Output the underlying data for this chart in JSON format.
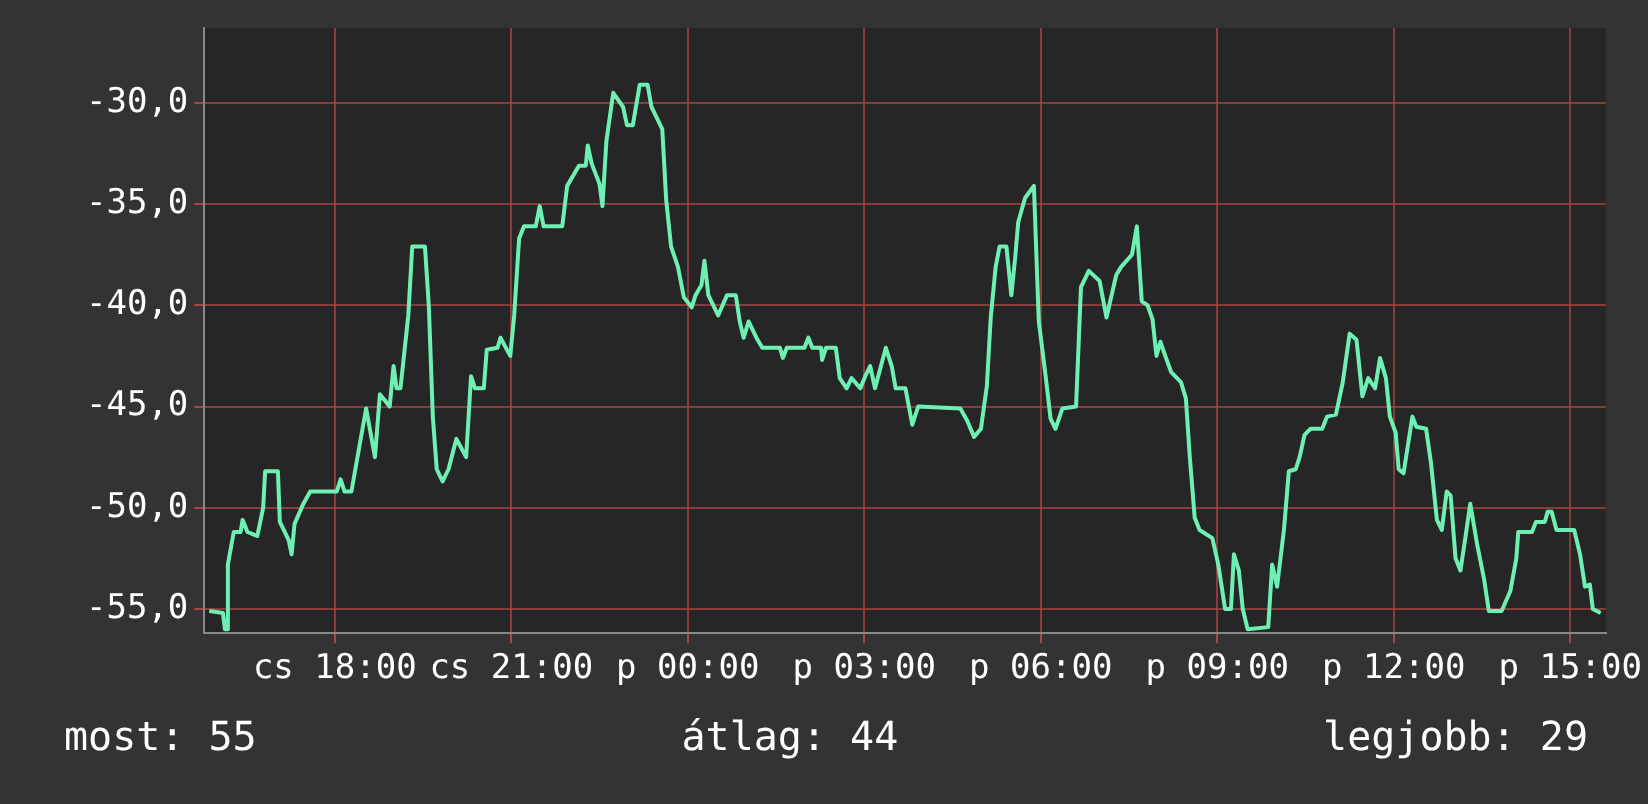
{
  "chart_data": {
    "type": "line",
    "line_style": "solid",
    "marker": "none",
    "grid": true,
    "legend": false,
    "xlim": [
      "--01-02T15:47",
      "--01-03T15:36"
    ],
    "xticks": [
      {
        "value": "--01-02T18:00",
        "label": "cs 18:00"
      },
      {
        "value": "--01-02T21:00",
        "label": "cs 21:00"
      },
      {
        "value": "--01-03T00:00",
        "label": "p 00:00"
      },
      {
        "value": "--01-03T03:00",
        "label": "p 03:00"
      },
      {
        "value": "--01-03T06:00",
        "label": "p 06:00"
      },
      {
        "value": "--01-03T09:00",
        "label": "p 09:00"
      },
      {
        "value": "--01-03T12:00",
        "label": "p 12:00"
      },
      {
        "value": "--01-03T15:00",
        "label": "p 15:00"
      }
    ],
    "ylim": [
      -56.2,
      -26.3
    ],
    "yticks": [
      {
        "value": -55,
        "label": "-55,0"
      },
      {
        "value": -50,
        "label": "-50,0"
      },
      {
        "value": -45,
        "label": "-45,0"
      },
      {
        "value": -40,
        "label": "-40,0"
      },
      {
        "value": -35,
        "label": "-35,0"
      },
      {
        "value": -30,
        "label": "-30,0"
      }
    ],
    "annotations": [
      "most: 55",
      "átlag: 44",
      "legjobb: 29"
    ],
    "series": [
      {
        "color": "#6ef0b4",
        "x": [
          "--01-02T15:52",
          "--01-02T16:06",
          "--01-02T16:08",
          "--01-02T16:11",
          "--01-02T16:11",
          "--01-02T16:17",
          "--01-02T16:24",
          "--01-02T16:26",
          "--01-02T16:31",
          "--01-02T16:41",
          "--01-02T16:47",
          "--01-02T16:49",
          "--01-02T17:02",
          "--01-02T17:04",
          "--01-02T17:13",
          "--01-02T17:16",
          "--01-02T17:19",
          "--01-02T17:28",
          "--01-02T17:35",
          "--01-02T18:02",
          "--01-02T18:06",
          "--01-02T18:10",
          "--01-02T18:17",
          "--01-02T18:25",
          "--01-02T18:32",
          "--01-02T18:41",
          "--01-02T18:46",
          "--01-02T18:56",
          "--01-02T19:00",
          "--01-02T19:03",
          "--01-02T19:07",
          "--01-02T19:15",
          "--01-02T19:19",
          "--01-02T19:32",
          "--01-02T19:36",
          "--01-02T19:40",
          "--01-02T19:44",
          "--01-02T19:50",
          "--01-02T19:56",
          "--01-02T20:04",
          "--01-02T20:14",
          "--01-02T20:19",
          "--01-02T20:23",
          "--01-02T20:32",
          "--01-02T20:35",
          "--01-02T20:46",
          "--01-02T20:49",
          "--01-02T20:59",
          "--01-02T21:03",
          "--01-02T21:08",
          "--01-02T21:13",
          "--01-02T21:25",
          "--01-02T21:29",
          "--01-02T21:33",
          "--01-02T21:52",
          "--01-02T21:57",
          "--01-02T22:09",
          "--01-02T22:16",
          "--01-02T22:18",
          "--01-02T22:22",
          "--01-02T22:30",
          "--01-02T22:33",
          "--01-02T22:37",
          "--01-02T22:44",
          "--01-02T22:54",
          "--01-02T22:58",
          "--01-02T23:04",
          "--01-02T23:11",
          "--01-02T23:19",
          "--01-02T23:23",
          "--01-02T23:34",
          "--01-02T23:38",
          "--01-02T23:43",
          "--01-02T23:50",
          "--01-02T23:56",
          "--01-03T00:04",
          "--01-03T00:08",
          "--01-03T00:14",
          "--01-03T00:17",
          "--01-03T00:21",
          "--01-03T00:31",
          "--01-03T00:40",
          "--01-03T00:49",
          "--01-03T00:53",
          "--01-03T00:57",
          "--01-03T01:02",
          "--01-03T01:10",
          "--01-03T01:16",
          "--01-03T01:34",
          "--01-03T01:37",
          "--01-03T01:41",
          "--01-03T01:59",
          "--01-03T02:03",
          "--01-03T02:07",
          "--01-03T02:16",
          "--01-03T02:17",
          "--01-03T02:21",
          "--01-03T02:31",
          "--01-03T02:35",
          "--01-03T02:42",
          "--01-03T02:47",
          "--01-03T02:56",
          "--01-03T03:01",
          "--01-03T03:06",
          "--01-03T03:11",
          "--01-03T03:22",
          "--01-03T03:28",
          "--01-03T03:32",
          "--01-03T03:42",
          "--01-03T03:49",
          "--01-03T03:55",
          "--01-03T04:38",
          "--01-03T04:45",
          "--01-03T04:52",
          "--01-03T04:59",
          "--01-03T05:05",
          "--01-03T05:09",
          "--01-03T05:14",
          "--01-03T05:18",
          "--01-03T05:25",
          "--01-03T05:30",
          "--01-03T05:34",
          "--01-03T05:37",
          "--01-03T05:44",
          "--01-03T05:53",
          "--01-03T05:58",
          "--01-03T06:05",
          "--01-03T06:10",
          "--01-03T06:15",
          "--01-03T06:22",
          "--01-03T06:36",
          "--01-03T06:41",
          "--01-03T06:49",
          "--01-03T07:00",
          "--01-03T07:07",
          "--01-03T07:17",
          "--01-03T07:22",
          "--01-03T07:33",
          "--01-03T07:38",
          "--01-03T07:43",
          "--01-03T07:49",
          "--01-03T07:54",
          "--01-03T07:58",
          "--01-03T08:02",
          "--01-03T08:07",
          "--01-03T08:13",
          "--01-03T08:23",
          "--01-03T08:28",
          "--01-03T08:32",
          "--01-03T08:37",
          "--01-03T08:42",
          "--01-03T08:55",
          "--01-03T09:01",
          "--01-03T09:08",
          "--01-03T09:14",
          "--01-03T09:17",
          "--01-03T09:22",
          "--01-03T09:26",
          "--01-03T09:31",
          "--01-03T09:52",
          "--01-03T09:56",
          "--01-03T10:01",
          "--01-03T10:08",
          "--01-03T10:13",
          "--01-03T10:20",
          "--01-03T10:24",
          "--01-03T10:29",
          "--01-03T10:35",
          "--01-03T10:47",
          "--01-03T10:52",
          "--01-03T11:01",
          "--01-03T11:08",
          "--01-03T11:15",
          "--01-03T11:22",
          "--01-03T11:28",
          "--01-03T11:34",
          "--01-03T11:41",
          "--01-03T11:46",
          "--01-03T11:52",
          "--01-03T11:56",
          "--01-03T12:02",
          "--01-03T12:05",
          "--01-03T12:10",
          "--01-03T12:19",
          "--01-03T12:23",
          "--01-03T12:33",
          "--01-03T12:38",
          "--01-03T12:44",
          "--01-03T12:49",
          "--01-03T12:54",
          "--01-03T12:58",
          "--01-03T13:03",
          "--01-03T13:08",
          "--01-03T13:13",
          "--01-03T13:18",
          "--01-03T13:25",
          "--01-03T13:32",
          "--01-03T13:37",
          "--01-03T13:50",
          "--01-03T13:59",
          "--01-03T14:05",
          "--01-03T14:07",
          "--01-03T14:21",
          "--01-03T14:25",
          "--01-03T14:34",
          "--01-03T14:37",
          "--01-03T14:41",
          "--01-03T14:46",
          "--01-03T15:04",
          "--01-03T15:10",
          "--01-03T15:15",
          "--01-03T15:20",
          "--01-03T15:23",
          "--01-03T15:31"
        ],
        "values": [
          -55.1,
          -55.2,
          -56.0,
          -56.0,
          -52.8,
          -51.2,
          -51.2,
          -50.6,
          -51.2,
          -51.4,
          -50.0,
          -48.2,
          -48.2,
          -50.7,
          -51.6,
          -52.3,
          -50.8,
          -49.8,
          -49.2,
          -49.2,
          -48.6,
          -49.2,
          -49.2,
          -47.0,
          -45.1,
          -47.5,
          -44.4,
          -45.0,
          -43.0,
          -44.1,
          -44.1,
          -40.5,
          -37.1,
          -37.1,
          -40.1,
          -45.5,
          -48.1,
          -48.7,
          -48.1,
          -46.6,
          -47.5,
          -43.5,
          -44.1,
          -44.1,
          -42.2,
          -42.1,
          -41.6,
          -42.5,
          -40.5,
          -36.7,
          -36.1,
          -36.1,
          -35.1,
          -36.1,
          -36.1,
          -34.1,
          -33.1,
          -33.1,
          -32.1,
          -33.0,
          -34.0,
          -35.1,
          -31.9,
          -29.5,
          -30.2,
          -31.1,
          -31.1,
          -29.1,
          -29.1,
          -30.2,
          -31.3,
          -34.8,
          -37.1,
          -38.1,
          -39.6,
          -40.1,
          -39.5,
          -39.0,
          -37.8,
          -39.5,
          -40.5,
          -39.5,
          -39.5,
          -40.8,
          -41.6,
          -40.8,
          -41.6,
          -42.1,
          -42.1,
          -42.6,
          -42.1,
          -42.1,
          -41.6,
          -42.1,
          -42.1,
          -42.7,
          -42.1,
          -42.1,
          -43.6,
          -44.1,
          -43.6,
          -44.1,
          -43.5,
          -43.0,
          -44.1,
          -42.1,
          -43.0,
          -44.1,
          -44.1,
          -45.9,
          -45.0,
          -45.1,
          -45.7,
          -46.5,
          -46.1,
          -44.0,
          -40.6,
          -38.1,
          -37.1,
          -37.1,
          -39.5,
          -37.6,
          -35.9,
          -34.7,
          -34.1,
          -40.8,
          -43.5,
          -45.6,
          -46.1,
          -45.1,
          -45.0,
          -39.1,
          -38.3,
          -38.8,
          -40.6,
          -38.5,
          -38.1,
          -37.5,
          -36.1,
          -39.8,
          -40.0,
          -40.7,
          -42.5,
          -41.8,
          -42.5,
          -43.3,
          -43.8,
          -44.6,
          -47.5,
          -50.5,
          -51.1,
          -51.5,
          -52.8,
          -55.0,
          -55.0,
          -52.3,
          -53.1,
          -55.0,
          -56.0,
          -55.9,
          -52.8,
          -53.9,
          -51.1,
          -48.2,
          -48.1,
          -47.5,
          -46.4,
          -46.1,
          -46.1,
          -45.5,
          -45.4,
          -43.8,
          -41.4,
          -41.7,
          -44.5,
          -43.6,
          -44.1,
          -42.6,
          -43.6,
          -45.5,
          -46.3,
          -48.1,
          -48.3,
          -45.5,
          -46.0,
          -46.1,
          -47.8,
          -50.6,
          -51.1,
          -49.2,
          -49.4,
          -52.5,
          -53.1,
          -51.5,
          -49.8,
          -51.8,
          -53.5,
          -55.1,
          -55.1,
          -54.1,
          -52.5,
          -51.2,
          -51.2,
          -50.7,
          -50.7,
          -50.2,
          -50.2,
          -51.1,
          -51.1,
          -52.3,
          -53.9,
          -53.8,
          -55.0,
          -55.2
        ]
      }
    ]
  }
}
